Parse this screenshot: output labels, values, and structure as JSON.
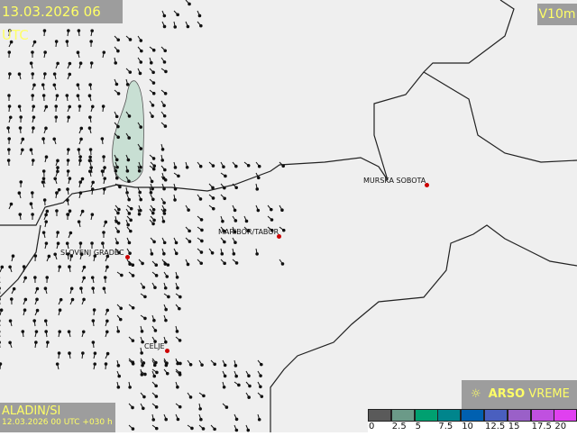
{
  "header": {
    "valid_time": "13.03.2026 06 UTC",
    "variable": "V10m"
  },
  "model": {
    "name": "ALADIN/SI",
    "run": "12.03.2026 00 UTC +030 h"
  },
  "brand": {
    "icon": "sun-icon",
    "arso": "ARSO",
    "vreme": "VREME"
  },
  "legend": {
    "colors": [
      "#5a5a5a",
      "#6b9a88",
      "#00a070",
      "#00858c",
      "#0060b0",
      "#4a5fbf",
      "#9a60c8",
      "#c050e0",
      "#e040f0"
    ],
    "ticks": [
      "0",
      "2.5",
      "5",
      "7.5",
      "10",
      "12.5",
      "15",
      "17.5",
      "20"
    ]
  },
  "cities": [
    {
      "name": "MURSKA SOBOTA"
    },
    {
      "name": "MARIBOR/TABOR"
    },
    {
      "name": "SLOVENJ GRADEC"
    },
    {
      "name": "CELJE"
    }
  ]
}
